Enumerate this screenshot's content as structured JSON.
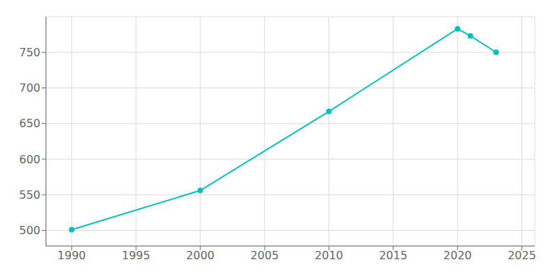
{
  "chart_data": {
    "type": "line",
    "x": [
      1990,
      2000,
      2010,
      2020,
      2021,
      2023
    ],
    "values": [
      501,
      556,
      667,
      783,
      773,
      750
    ],
    "color": "#00BFBF",
    "xlim": [
      1988,
      2026
    ],
    "ylim": [
      478,
      800
    ],
    "xticks": [
      1990,
      1995,
      2000,
      2005,
      2010,
      2015,
      2020,
      2025
    ],
    "yticks": [
      500,
      550,
      600,
      650,
      700,
      750
    ],
    "grid": true,
    "marker": "circle"
  }
}
